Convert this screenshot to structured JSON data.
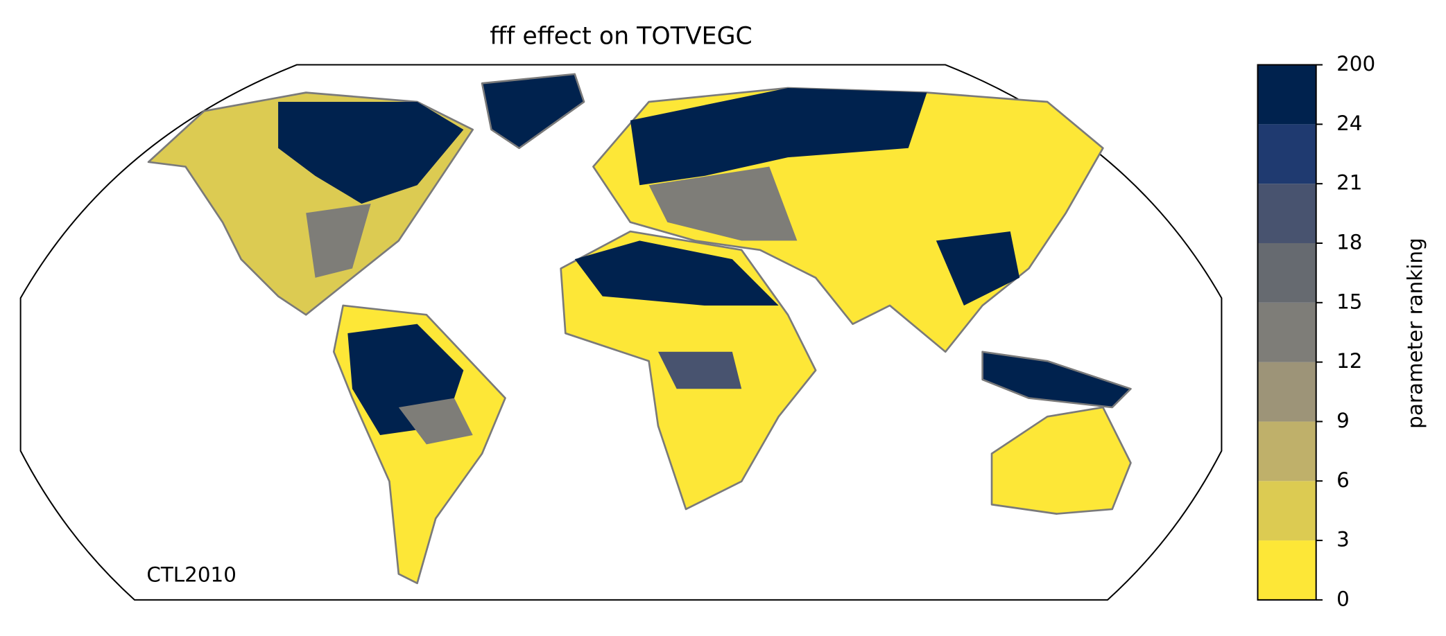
{
  "chart_data": {
    "type": "map",
    "title": "fff effect on TOTVEGC",
    "annotation": "CTL2010",
    "colorbar": {
      "label": "parameter ranking",
      "ticks": [
        0,
        3,
        6,
        9,
        12,
        15,
        18,
        21,
        24,
        200
      ],
      "colors": [
        "#fde737",
        "#dccb52",
        "#bfb06a",
        "#9d9478",
        "#7e7d78",
        "#666a70",
        "#48536f",
        "#1f3a70",
        "#00224e"
      ]
    }
  }
}
